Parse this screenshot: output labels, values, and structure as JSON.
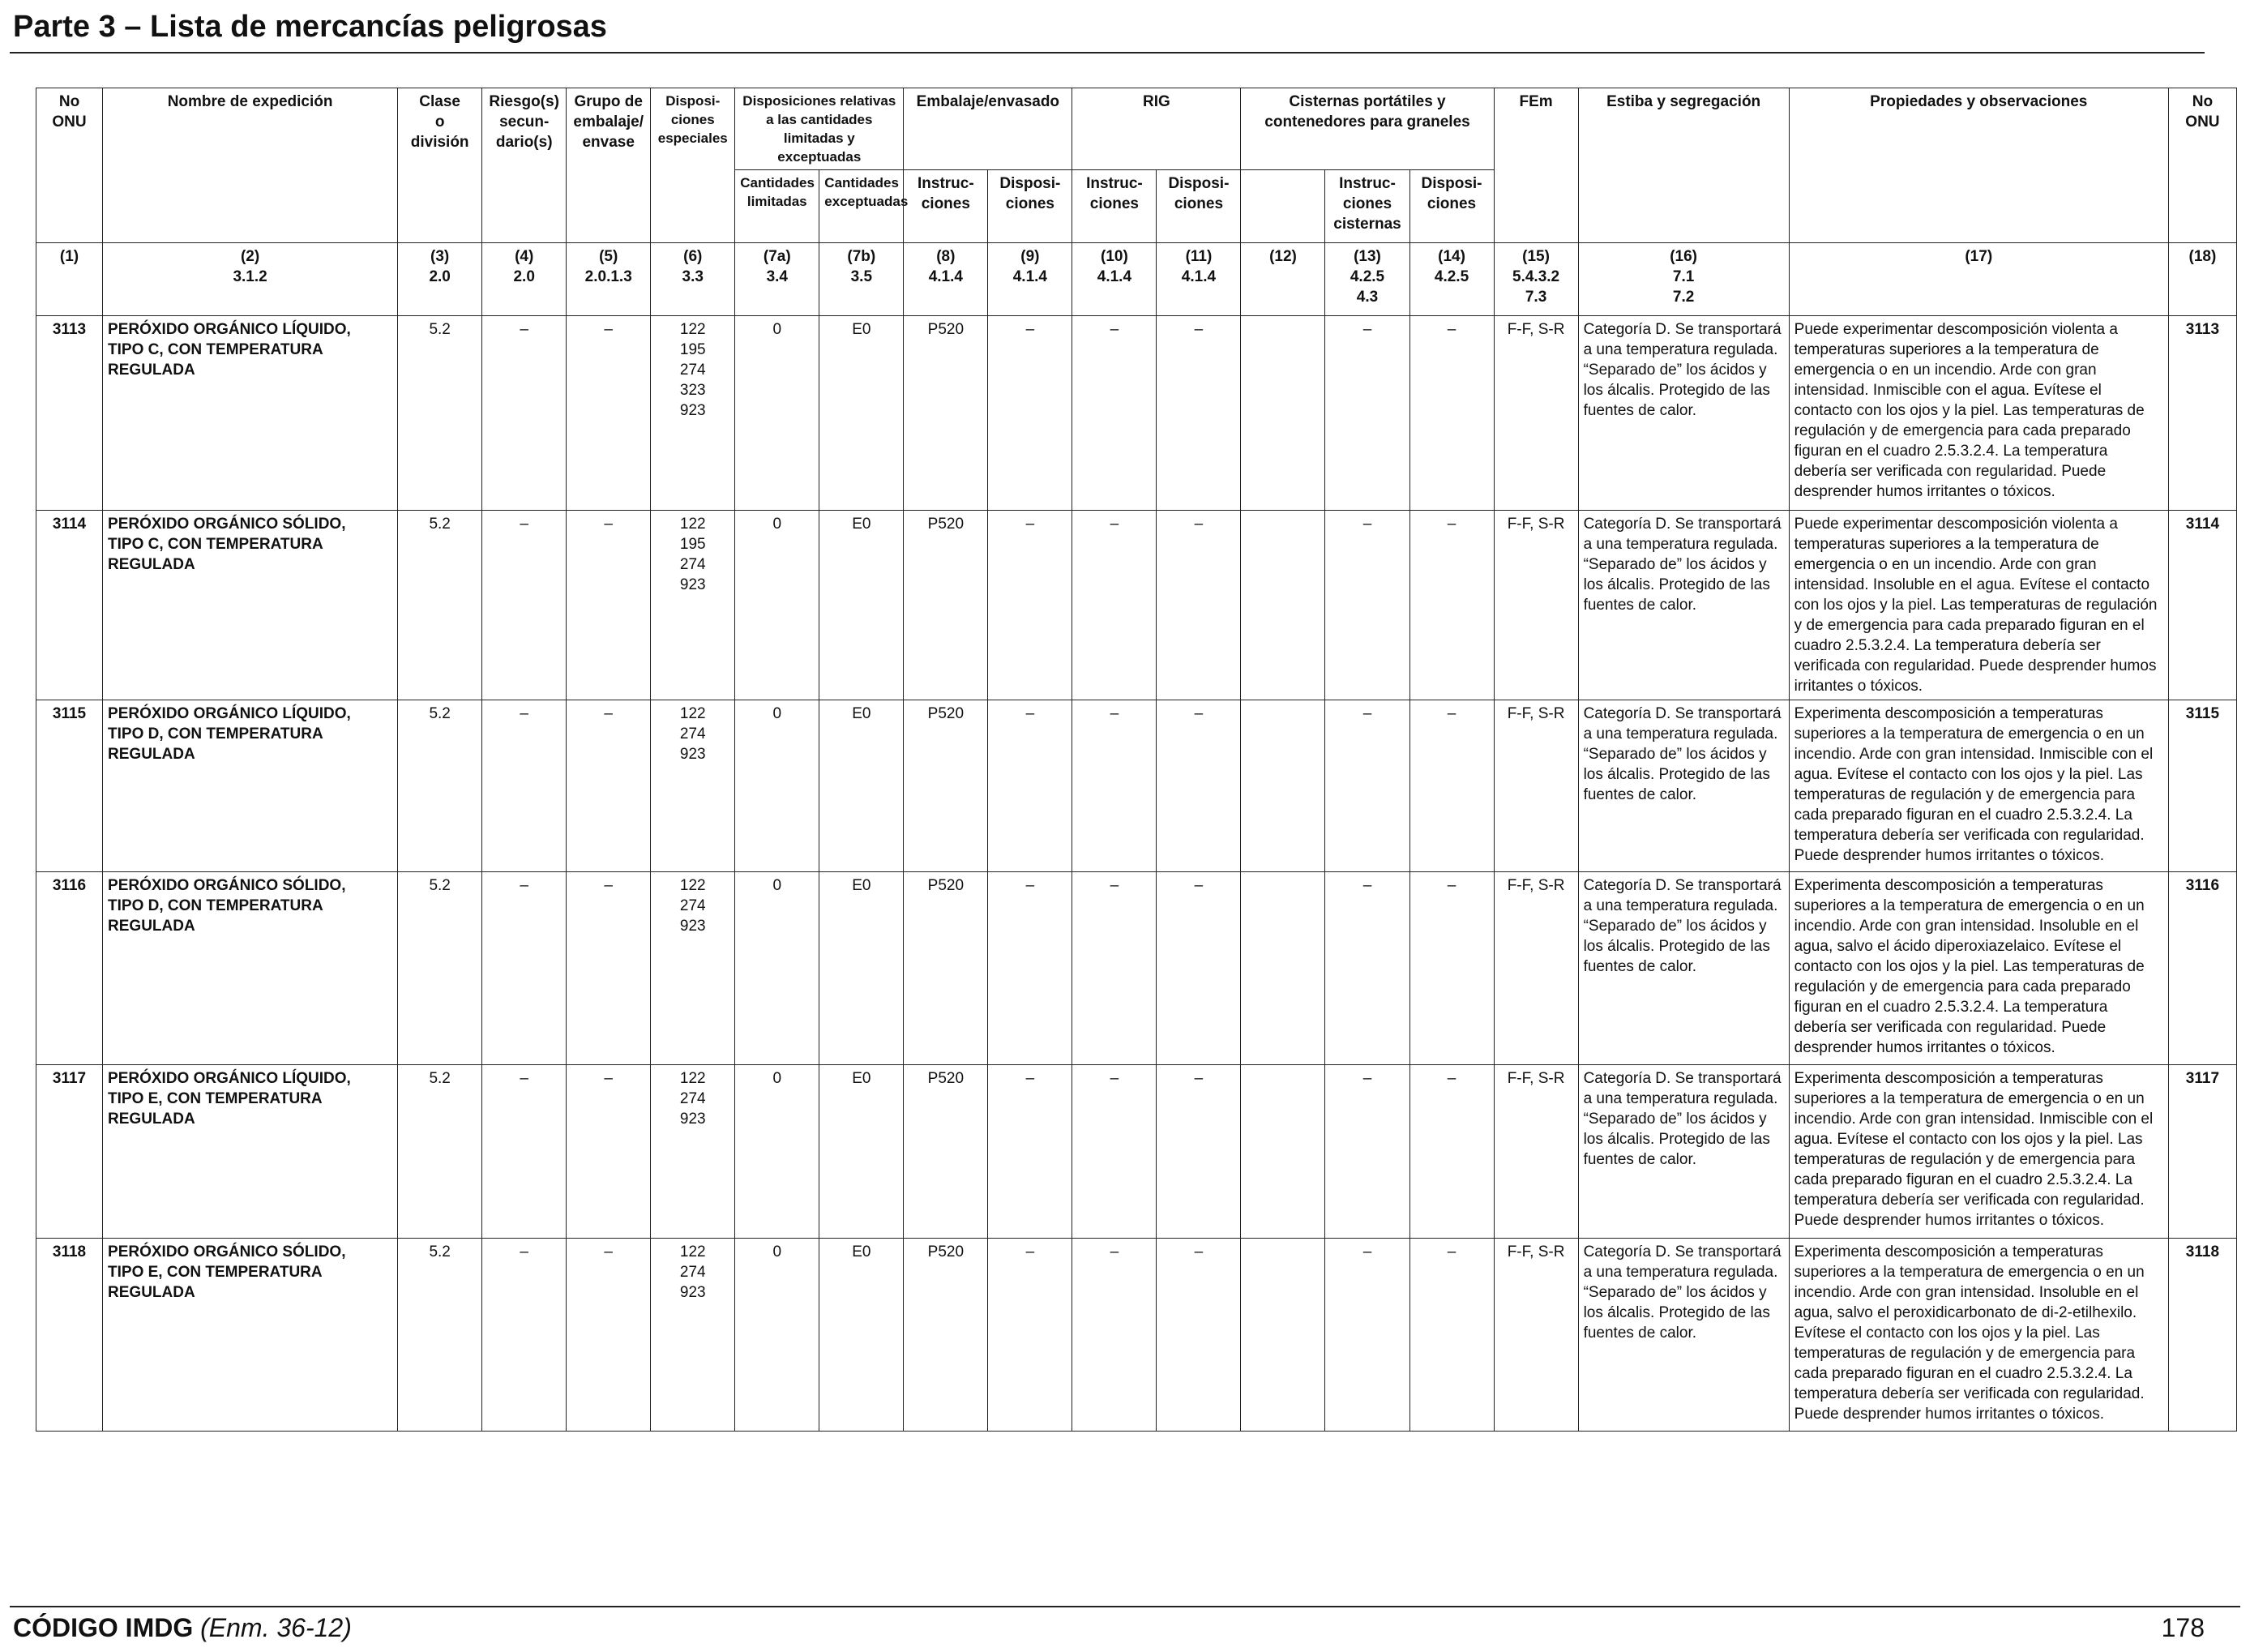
{
  "page": {
    "title": "Parte 3 – Lista de mercancías peligrosas",
    "footer_code": "CÓDIGO IMDG",
    "footer_amendment": "(Enm. 36-12)",
    "page_number": "178"
  },
  "headers": {
    "no_onu": "No\nONU",
    "nombre": "Nombre de expedición",
    "clase": "Clase\no\ndivisión",
    "riesgo": "Riesgo(s)\nsecun-\ndario(s)",
    "grupo": "Grupo de\nembalaje/\nenvase",
    "disposiciones_especiales": "Disposi-\nciones\nespeciales",
    "cantidades_group": "Disposiciones relativas\na las cantidades\nlimitadas y exceptuadas",
    "cantidades_limitadas": "Cantidades\nlimitadas",
    "cantidades_exceptuadas": "Cantidades\nexceptuadas",
    "embalaje_group": "Embalaje/envasado",
    "emb_instrucciones": "Instruc-\nciones",
    "emb_disposiciones": "Disposi-\nciones",
    "rig_group": "RIG",
    "rig_instrucciones": "Instruc-\nciones",
    "rig_disposiciones": "Disposi-\nciones",
    "cisternas_group": "Cisternas portátiles y\ncontenedores para graneles",
    "cis_instrucciones": "Instruc-\nciones\ncisternas",
    "cis_disposiciones": "Disposi-\nciones",
    "fem": "FEm",
    "estiba": "Estiba y segregación",
    "propiedades": "Propiedades y observaciones",
    "no_onu_right": "No\nONU"
  },
  "column_numbers": [
    "(1)",
    "(2)\n3.1.2",
    "(3)\n2.0",
    "(4)\n2.0",
    "(5)\n2.0.1.3",
    "(6)\n3.3",
    "(7a)\n3.4",
    "(7b)\n3.5",
    "(8)\n4.1.4",
    "(9)\n4.1.4",
    "(10)\n4.1.4",
    "(11)\n4.1.4",
    "(12)",
    "(13)\n4.2.5\n4.3",
    "(14)\n4.2.5",
    "(15)\n5.4.3.2\n7.3",
    "(16)\n7.1\n7.2",
    "(17)",
    "(18)"
  ],
  "rows": [
    {
      "onu": "3113",
      "nombre": "PERÓXIDO ORGÁNICO LÍQUIDO,\nTIPO C, CON TEMPERATURA\nREGULADA",
      "clase": "5.2",
      "riesgo": "–",
      "grupo": "–",
      "disp_especiales": "122\n195\n274\n323\n923",
      "cant_lim": "0",
      "cant_exc": "E0",
      "emb_instr": "P520",
      "emb_disp": "–",
      "rig_instr": "–",
      "rig_disp": "–",
      "col12": "",
      "cis_instr": "–",
      "cis_disp": "–",
      "fem": "F-F, S-R",
      "estiba": "Categoría D. Se transportará a una temperatura regulada. “Separado de” los ácidos y los álcalis. Protegido de las fuentes de calor.",
      "propiedades": "Puede experimentar descomposición violenta a temperaturas superiores a la temperatura de emergencia o en un incendio. Arde con gran intensidad. Inmiscible con el agua. Evítese el contacto con los ojos y la piel. Las temperaturas de regulación y de emergencia para cada preparado figuran en el cuadro 2.5.3.2.4. La temperatura debería ser verificada con regularidad. Puede desprender humos irritantes o tóxicos.",
      "onu_right": "3113"
    },
    {
      "onu": "3114",
      "nombre": "PERÓXIDO ORGÁNICO SÓLIDO,\nTIPO C, CON TEMPERATURA\nREGULADA",
      "clase": "5.2",
      "riesgo": "–",
      "grupo": "–",
      "disp_especiales": "122\n195\n274\n923",
      "cant_lim": "0",
      "cant_exc": "E0",
      "emb_instr": "P520",
      "emb_disp": "–",
      "rig_instr": "–",
      "rig_disp": "–",
      "col12": "",
      "cis_instr": "–",
      "cis_disp": "–",
      "fem": "F-F, S-R",
      "estiba": "Categoría D. Se transportará a una temperatura regulada. “Separado de” los ácidos y los álcalis. Protegido de las fuentes de calor.",
      "propiedades": "Puede experimentar descomposición violenta a temperaturas superiores a la temperatura de emergencia o en un incendio. Arde con gran intensidad. Insoluble en el agua. Evítese el contacto con los ojos y la piel. Las temperaturas de regulación y de emergencia para cada preparado figuran en el cuadro 2.5.3.2.4. La temperatura debería ser verificada con regularidad. Puede desprender humos irritantes o tóxicos.",
      "onu_right": "3114"
    },
    {
      "onu": "3115",
      "nombre": "PERÓXIDO ORGÁNICO LÍQUIDO,\nTIPO D, CON TEMPERATURA\nREGULADA",
      "clase": "5.2",
      "riesgo": "–",
      "grupo": "–",
      "disp_especiales": "122\n274\n923",
      "cant_lim": "0",
      "cant_exc": "E0",
      "emb_instr": "P520",
      "emb_disp": "–",
      "rig_instr": "–",
      "rig_disp": "–",
      "col12": "",
      "cis_instr": "–",
      "cis_disp": "–",
      "fem": "F-F, S-R",
      "estiba": "Categoría D. Se transportará a una temperatura regulada. “Separado de” los ácidos y los álcalis. Protegido de las fuentes de calor.",
      "propiedades": "Experimenta descomposición a temperaturas superiores a la temperatura de emergencia o en un incendio. Arde con gran intensidad. Inmiscible con el agua. Evítese el contacto con los ojos y la piel. Las temperaturas de regulación y de emergencia para cada preparado figuran en el cuadro 2.5.3.2.4. La temperatura debería ser verificada con regularidad. Puede desprender humos irritantes o tóxicos.",
      "onu_right": "3115"
    },
    {
      "onu": "3116",
      "nombre": "PERÓXIDO ORGÁNICO SÓLIDO,\nTIPO D, CON TEMPERATURA\nREGULADA",
      "clase": "5.2",
      "riesgo": "–",
      "grupo": "–",
      "disp_especiales": "122\n274\n923",
      "cant_lim": "0",
      "cant_exc": "E0",
      "emb_instr": "P520",
      "emb_disp": "–",
      "rig_instr": "–",
      "rig_disp": "–",
      "col12": "",
      "cis_instr": "–",
      "cis_disp": "–",
      "fem": "F-F, S-R",
      "estiba": "Categoría D. Se transportará a una temperatura regulada. “Separado de” los ácidos y los álcalis. Protegido de las fuentes de calor.",
      "propiedades": "Experimenta descomposición a temperaturas superiores a la temperatura de emergencia o en un incendio. Arde con gran intensidad. Insoluble en el agua, salvo el ácido diperoxiazelaico. Evítese el contacto con los ojos y la piel. Las temperaturas de regulación y de emergencia para cada preparado figuran en el cuadro 2.5.3.2.4. La temperatura debería ser verificada con regularidad. Puede desprender humos irritantes o tóxicos.",
      "onu_right": "3116"
    },
    {
      "onu": "3117",
      "nombre": "PERÓXIDO ORGÁNICO LÍQUIDO,\nTIPO E, CON TEMPERATURA\nREGULADA",
      "clase": "5.2",
      "riesgo": "–",
      "grupo": "–",
      "disp_especiales": "122\n274\n923",
      "cant_lim": "0",
      "cant_exc": "E0",
      "emb_instr": "P520",
      "emb_disp": "–",
      "rig_instr": "–",
      "rig_disp": "–",
      "col12": "",
      "cis_instr": "–",
      "cis_disp": "–",
      "fem": "F-F, S-R",
      "estiba": "Categoría D. Se transportará a una temperatura regulada. “Separado de” los ácidos y los álcalis. Protegido de las fuentes de calor.",
      "propiedades": "Experimenta descomposición a temperaturas superiores a la temperatura de emergencia o en un incendio. Arde con gran intensidad. Inmiscible con el agua. Evítese el contacto con los ojos y la piel. Las temperaturas de regulación y de emergencia para cada preparado figuran en el cuadro 2.5.3.2.4. La temperatura debería ser verificada con regularidad. Puede desprender humos irritantes o tóxicos.",
      "onu_right": "3117"
    },
    {
      "onu": "3118",
      "nombre": "PERÓXIDO ORGÁNICO SÓLIDO,\nTIPO E, CON TEMPERATURA\nREGULADA",
      "clase": "5.2",
      "riesgo": "–",
      "grupo": "–",
      "disp_especiales": "122\n274\n923",
      "cant_lim": "0",
      "cant_exc": "E0",
      "emb_instr": "P520",
      "emb_disp": "–",
      "rig_instr": "–",
      "rig_disp": "–",
      "col12": "",
      "cis_instr": "–",
      "cis_disp": "–",
      "fem": "F-F, S-R",
      "estiba": "Categoría D. Se transportará a una temperatura regulada. “Separado de” los ácidos y los álcalis. Protegido de las fuentes de calor.",
      "propiedades": "Experimenta descomposición a temperaturas superiores a la temperatura de emergencia o en un incendio. Arde con gran intensidad. Insoluble en el agua, salvo el peroxidicarbonato de di-2-etilhexilo. Evítese el contacto con los ojos y la piel. Las temperaturas de regulación y de emergencia para cada preparado figuran en el cuadro 2.5.3.2.4. La temperatura debería ser verificada con regularidad. Puede desprender humos irritantes o tóxicos.",
      "onu_right": "3118"
    }
  ]
}
